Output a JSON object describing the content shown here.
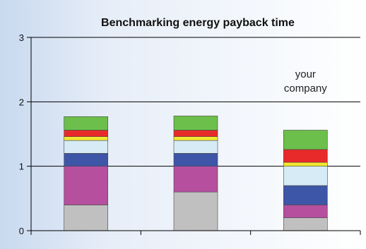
{
  "chart_data": {
    "type": "bar",
    "stacked": true,
    "title": "Benchmarking energy payback time",
    "xlabel": "",
    "ylabel": "",
    "ylim": [
      0,
      3
    ],
    "yticks": [
      "0",
      "1",
      "2",
      "3"
    ],
    "grid": true,
    "categories": [
      "",
      "",
      ""
    ],
    "series": [
      {
        "color": "#c0c0c0",
        "values": [
          0.4,
          0.6,
          0.2
        ]
      },
      {
        "color": "#b54f9e",
        "values": [
          0.6,
          0.4,
          0.2
        ]
      },
      {
        "color": "#3e56a7",
        "values": [
          0.2,
          0.2,
          0.3
        ]
      },
      {
        "color": "#d6ebf5",
        "values": [
          0.2,
          0.2,
          0.3
        ]
      },
      {
        "color": "#f2e830",
        "values": [
          0.06,
          0.06,
          0.06
        ]
      },
      {
        "color": "#e82a2a",
        "values": [
          0.1,
          0.1,
          0.2
        ]
      },
      {
        "color": "#6cbf4a",
        "values": [
          0.21,
          0.22,
          0.3
        ]
      }
    ],
    "annotation": {
      "lines": [
        "your",
        "company"
      ],
      "category_index": 2
    }
  }
}
